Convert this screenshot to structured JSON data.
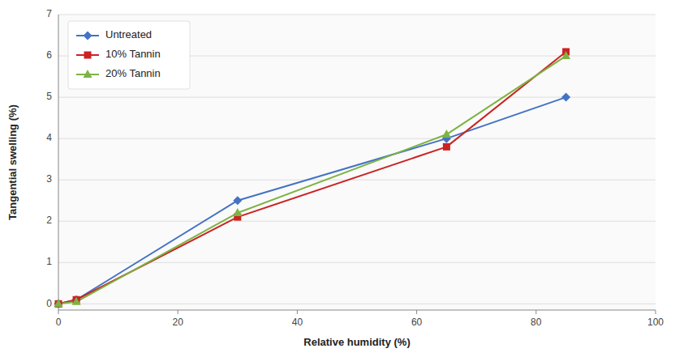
{
  "chart_data": {
    "type": "line",
    "x": [
      0,
      3,
      30,
      65,
      85
    ],
    "series": [
      {
        "name": "Untreated",
        "color": "#4472C4",
        "marker": "diamond",
        "values": [
          0.0,
          0.1,
          2.5,
          4.0,
          5.0
        ]
      },
      {
        "name": "10% Tannin",
        "color": "#CC2222",
        "marker": "square",
        "values": [
          0.0,
          0.1,
          2.1,
          3.8,
          6.1
        ]
      },
      {
        "name": "20% Tannin",
        "color": "#7CB342",
        "marker": "triangle",
        "values": [
          0.0,
          0.05,
          2.2,
          4.1,
          6.0
        ]
      }
    ],
    "xlabel": "Relative humidity (%)",
    "ylabel": "Tangential swelling (%)",
    "xlim": [
      0,
      100
    ],
    "ylim": [
      -0.15,
      7
    ],
    "xticks": [
      0,
      20,
      40,
      60,
      80,
      100
    ],
    "yticks": [
      0,
      1,
      2,
      3,
      4,
      5,
      6,
      7
    ],
    "grid": true,
    "legend": "upper left"
  }
}
